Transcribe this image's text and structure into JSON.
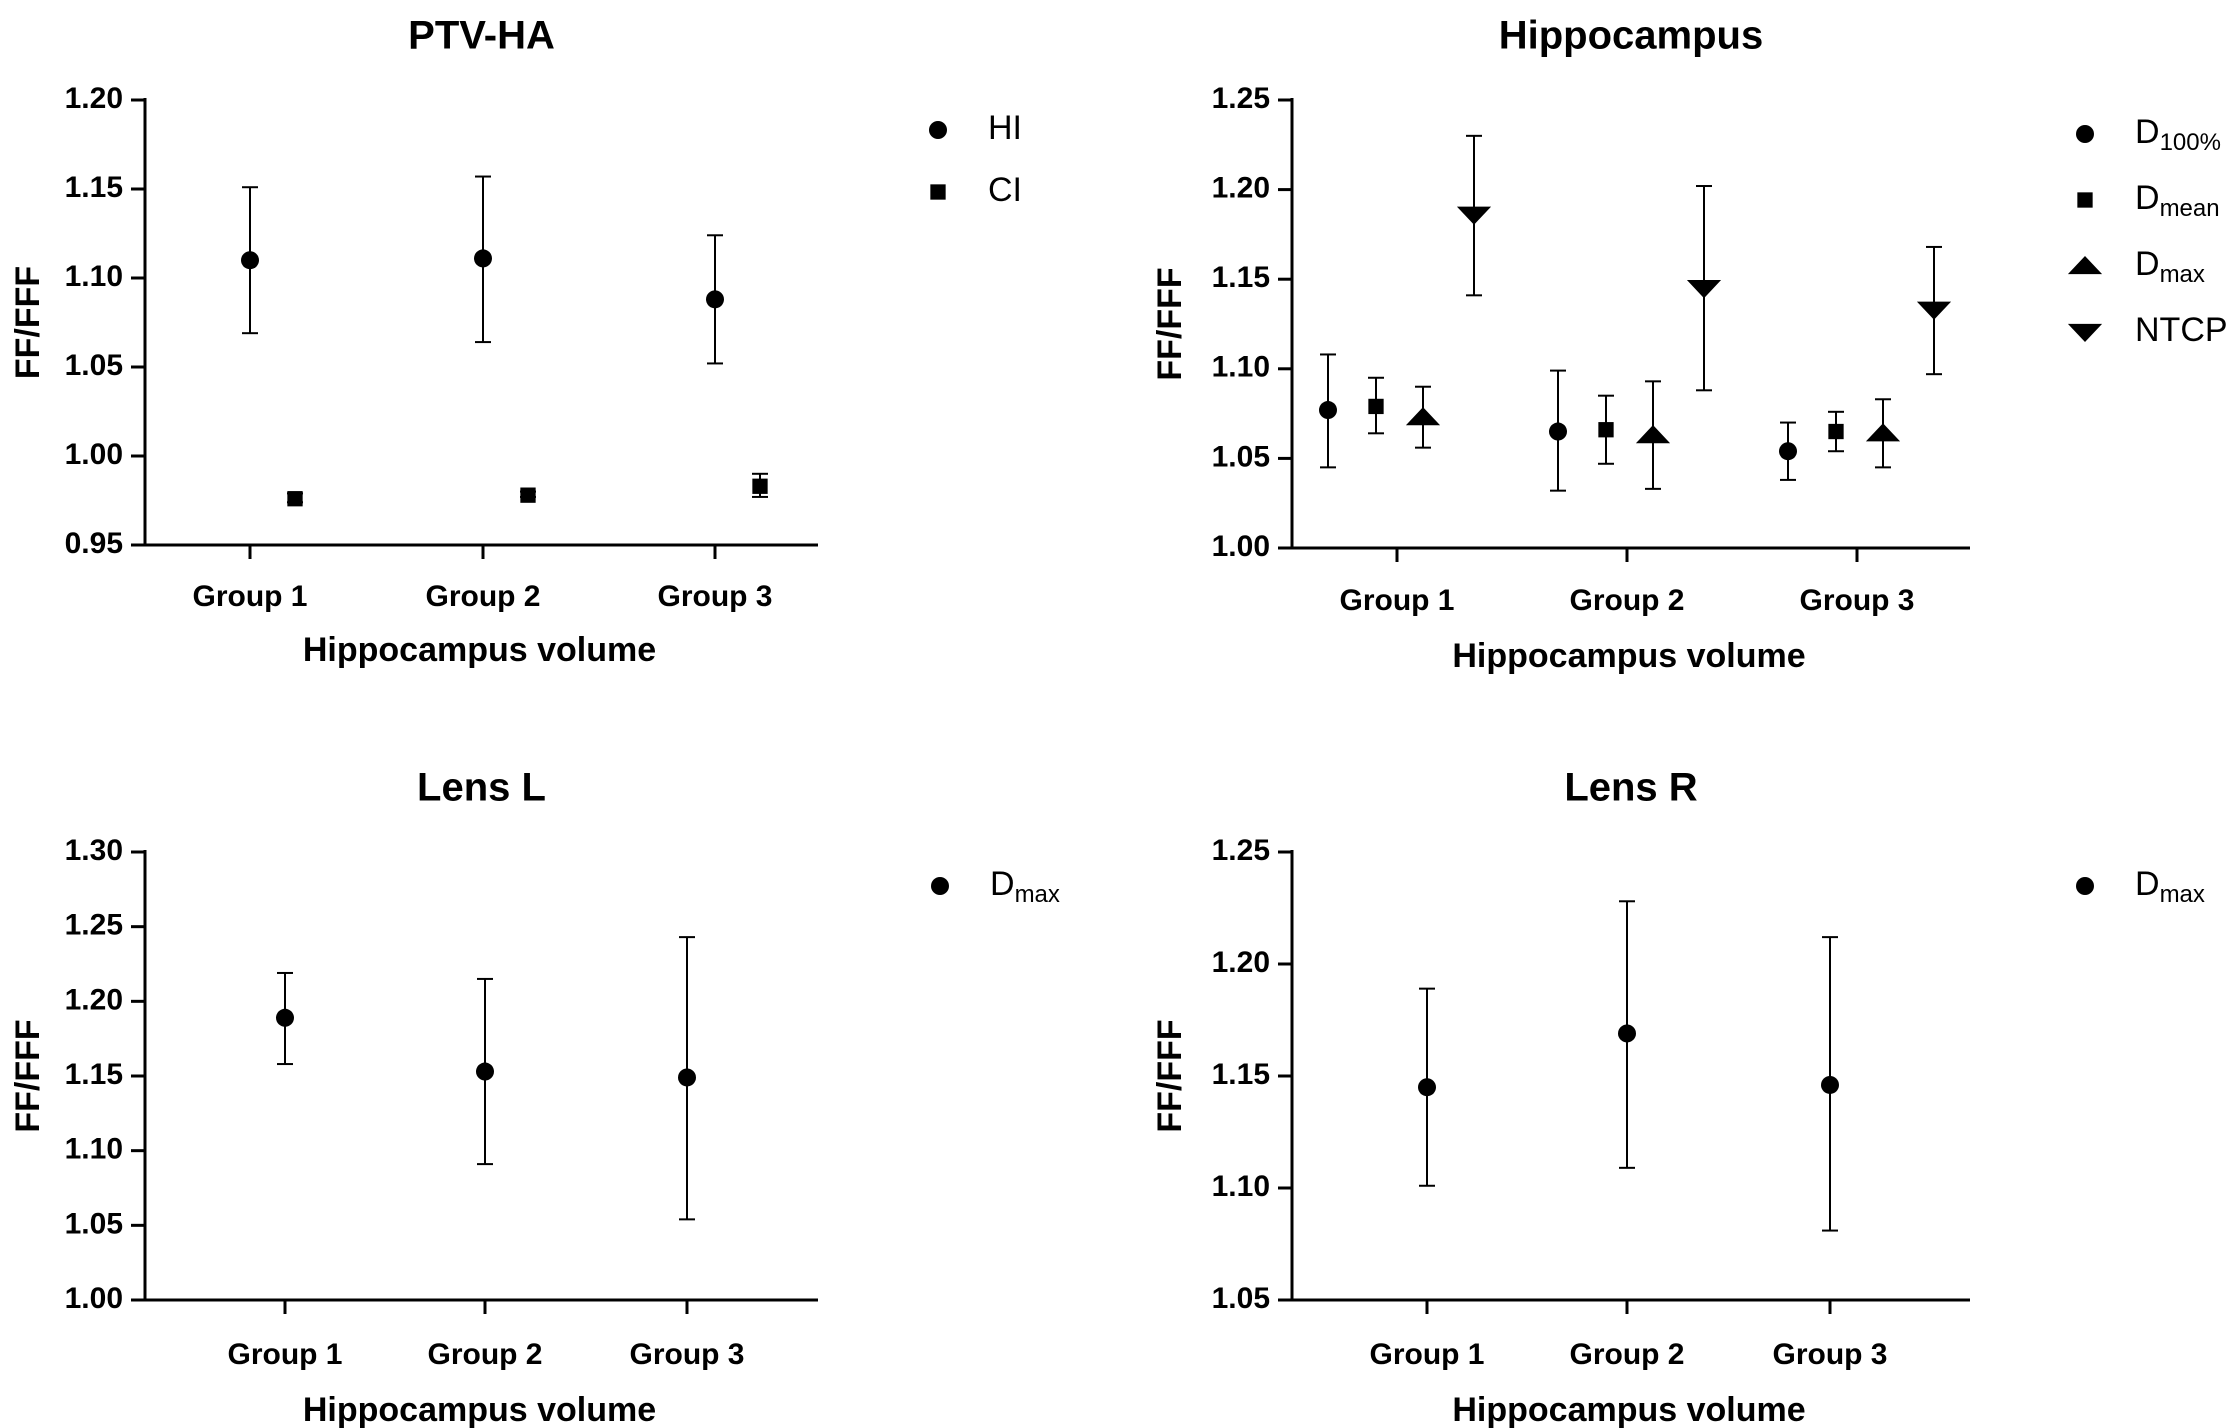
{
  "chart_data": [
    {
      "type": "scatter",
      "title": "PTV-HA",
      "xlabel": "Hippocampus volume",
      "ylabel": "FF/FFF",
      "categories": [
        "Group 1",
        "Group 2",
        "Group 3"
      ],
      "ylim": [
        0.95,
        1.2
      ],
      "yticks": [
        "0.95",
        "1.00",
        "1.05",
        "1.10",
        "1.15",
        "1.20"
      ],
      "legend_position": "right",
      "series": [
        {
          "name": "HI",
          "sub": "",
          "marker": "circle",
          "values": [
            1.11,
            1.111,
            1.088
          ],
          "lower": [
            1.069,
            1.064,
            1.052
          ],
          "upper": [
            1.151,
            1.157,
            1.124
          ]
        },
        {
          "name": "CI",
          "sub": "",
          "marker": "square",
          "values": [
            0.976,
            0.978,
            0.983
          ],
          "lower": [
            0.974,
            0.977,
            0.977
          ],
          "upper": [
            0.979,
            0.98,
            0.99
          ]
        }
      ]
    },
    {
      "type": "scatter",
      "title": "Hippocampus",
      "xlabel": "Hippocampus volume",
      "ylabel": "FF/FFF",
      "categories": [
        "Group 1",
        "Group 2",
        "Group 3"
      ],
      "ylim": [
        1.0,
        1.25
      ],
      "yticks": [
        "1.00",
        "1.05",
        "1.10",
        "1.15",
        "1.20",
        "1.25"
      ],
      "legend_position": "right",
      "series": [
        {
          "name": "D",
          "sub": "100%",
          "marker": "circle",
          "values": [
            1.077,
            1.065,
            1.054
          ],
          "lower": [
            1.045,
            1.032,
            1.038
          ],
          "upper": [
            1.108,
            1.099,
            1.07
          ]
        },
        {
          "name": "D",
          "sub": "mean",
          "marker": "square",
          "values": [
            1.079,
            1.066,
            1.065
          ],
          "lower": [
            1.064,
            1.047,
            1.054
          ],
          "upper": [
            1.095,
            1.085,
            1.076
          ]
        },
        {
          "name": "D",
          "sub": "max",
          "marker": "triangle-up",
          "values": [
            1.073,
            1.063,
            1.064
          ],
          "lower": [
            1.056,
            1.033,
            1.045
          ],
          "upper": [
            1.09,
            1.093,
            1.083
          ]
        },
        {
          "name": "NTCP",
          "sub": "",
          "marker": "triangle-down",
          "values": [
            1.186,
            1.145,
            1.133
          ],
          "lower": [
            1.141,
            1.088,
            1.097
          ],
          "upper": [
            1.23,
            1.202,
            1.168
          ]
        }
      ]
    },
    {
      "type": "scatter",
      "title": "Lens L",
      "xlabel": "Hippocampus volume",
      "ylabel": "FF/FFF",
      "categories": [
        "Group 1",
        "Group 2",
        "Group 3"
      ],
      "ylim": [
        1.0,
        1.3
      ],
      "yticks": [
        "1.00",
        "1.05",
        "1.10",
        "1.15",
        "1.20",
        "1.25",
        "1.30"
      ],
      "legend_position": "right",
      "series": [
        {
          "name": "D",
          "sub": "max",
          "marker": "circle",
          "values": [
            1.189,
            1.153,
            1.149
          ],
          "lower": [
            1.158,
            1.091,
            1.054
          ],
          "upper": [
            1.219,
            1.215,
            1.243
          ]
        }
      ]
    },
    {
      "type": "scatter",
      "title": "Lens R",
      "xlabel": "Hippocampus volume",
      "ylabel": "FF/FFF",
      "categories": [
        "Group 1",
        "Group 2",
        "Group 3"
      ],
      "ylim": [
        1.05,
        1.25
      ],
      "yticks": [
        "1.05",
        "1.10",
        "1.15",
        "1.20",
        "1.25"
      ],
      "legend_position": "right",
      "series": [
        {
          "name": "D",
          "sub": "max",
          "marker": "circle",
          "values": [
            1.145,
            1.169,
            1.146
          ],
          "lower": [
            1.101,
            1.109,
            1.081
          ],
          "upper": [
            1.189,
            1.228,
            1.212
          ]
        }
      ]
    }
  ]
}
